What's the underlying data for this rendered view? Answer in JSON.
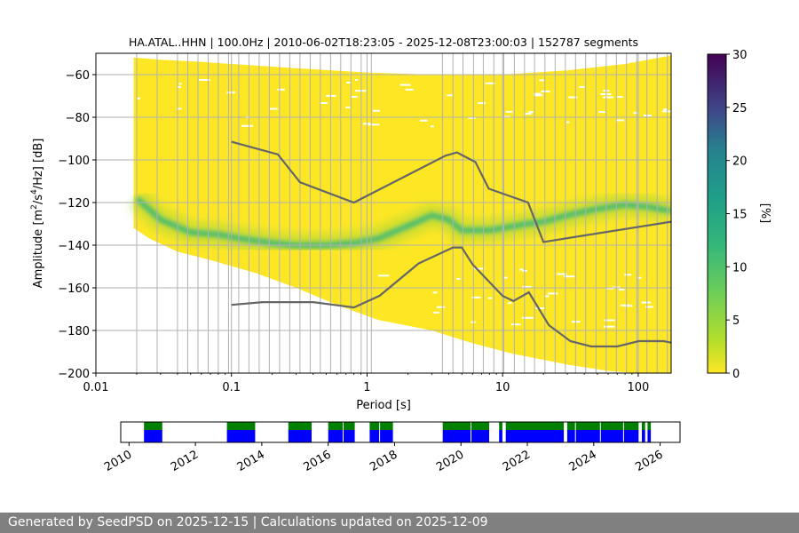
{
  "chart_data": [
    {
      "type": "heatmap",
      "title": "HA.ATAL..HHN | 100.0Hz | 2010-06-02T18:23:05 - 2025-12-08T23:00:03 | 152787 segments",
      "xlabel": "Period [s]",
      "ylabel_parts": [
        "Amplitude [m",
        "2",
        "/s",
        "4",
        "/Hz] [dB]"
      ],
      "x_scale": "log",
      "xlim": [
        0.01,
        175
      ],
      "ylim": [
        -200,
        -50
      ],
      "x_ticks": [
        0.01,
        0.1,
        1,
        10,
        100
      ],
      "x_tick_labels": [
        "0.01",
        "0.1",
        "1",
        "10",
        "100"
      ],
      "y_ticks": [
        -200,
        -180,
        -160,
        -140,
        -120,
        -100,
        -80,
        -60
      ],
      "y_tick_labels": [
        "−200",
        "−180",
        "−160",
        "−140",
        "−120",
        "−100",
        "−80",
        "−60"
      ],
      "grid_periods": [
        0.02,
        0.0283,
        0.04,
        0.0476,
        0.0566,
        0.0673,
        0.08,
        0.0951,
        0.1131,
        0.1345,
        0.16,
        0.1903,
        0.2263,
        0.2691,
        0.32,
        0.3805,
        0.4525,
        0.5382,
        0.64,
        0.7611,
        0.9051,
        1.0763
      ],
      "colorbar": {
        "label": "[%]",
        "min": 0,
        "max": 30,
        "ticks": [
          0,
          5,
          10,
          15,
          20,
          25,
          30
        ]
      },
      "ppsd_mode_curve": {
        "x": [
          0.02,
          0.03,
          0.05,
          0.08,
          0.12,
          0.2,
          0.3,
          0.5,
          0.8,
          1.2,
          2,
          3,
          4,
          5,
          6,
          8,
          10,
          15,
          20,
          30,
          50,
          80,
          120,
          175
        ],
        "y": [
          -118,
          -128,
          -134,
          -135,
          -137,
          -139,
          -140,
          -140,
          -139,
          -137,
          -131,
          -126,
          -128,
          -133,
          -133,
          -133,
          -132,
          -130,
          -129,
          -126,
          -123,
          -121,
          -122,
          -124
        ]
      },
      "nlnm_curve": {
        "x": [
          0.1,
          0.17,
          0.4,
          0.8,
          1.24,
          2.4,
          4.3,
          5.0,
          6.0,
          10.0,
          12.0,
          15.6,
          21.9,
          31.6,
          45.0,
          70.0,
          101.0,
          154.0,
          175.0
        ],
        "y": [
          -168,
          -166.7,
          -166.7,
          -169.2,
          -163.7,
          -148.6,
          -141.1,
          -141.1,
          -149.0,
          -163.8,
          -166.2,
          -162.1,
          -177.5,
          -185.0,
          -187.5,
          -187.5,
          -185.0,
          -185.0,
          -185.7
        ]
      },
      "nhnm_curve": {
        "x": [
          0.1,
          0.22,
          0.32,
          0.8,
          3.8,
          4.6,
          6.3,
          7.9,
          15.4,
          20.0,
          175.0
        ],
        "y": [
          -91.5,
          -97.4,
          -110.5,
          -120.0,
          -98.0,
          -96.5,
          -101.0,
          -113.5,
          -120.0,
          -138.5,
          -129.0
        ]
      }
    },
    {
      "type": "timeline",
      "xlim_years": [
        2009.75,
        2026.6
      ],
      "x_tick_labels": [
        "2010",
        "2012",
        "2014",
        "2016",
        "2018",
        "2020",
        "2022",
        "2024",
        "2026"
      ],
      "x_tick_years": [
        2010,
        2012,
        2014,
        2016,
        2018,
        2020,
        2022,
        2024,
        2026
      ],
      "segment_spans": [
        [
          2010.45,
          2011.0
        ],
        [
          2012.95,
          2013.8
        ],
        [
          2014.8,
          2015.5
        ],
        [
          2016.0,
          2016.8
        ],
        [
          2017.25,
          2017.95
        ],
        [
          2019.45,
          2020.85
        ],
        [
          2021.15,
          2021.25
        ],
        [
          2021.35,
          2023.1
        ],
        [
          2023.2,
          2025.35
        ],
        [
          2025.45,
          2025.55
        ],
        [
          2025.62,
          2025.72
        ]
      ],
      "gap_lines": [
        2024.2,
        2024.9,
        2023.45,
        2020.3,
        2017.55,
        2016.45
      ]
    }
  ],
  "footer_text": "Generated by SeedPSD on 2025-12-15 | Calculations updated on 2025-12-09"
}
